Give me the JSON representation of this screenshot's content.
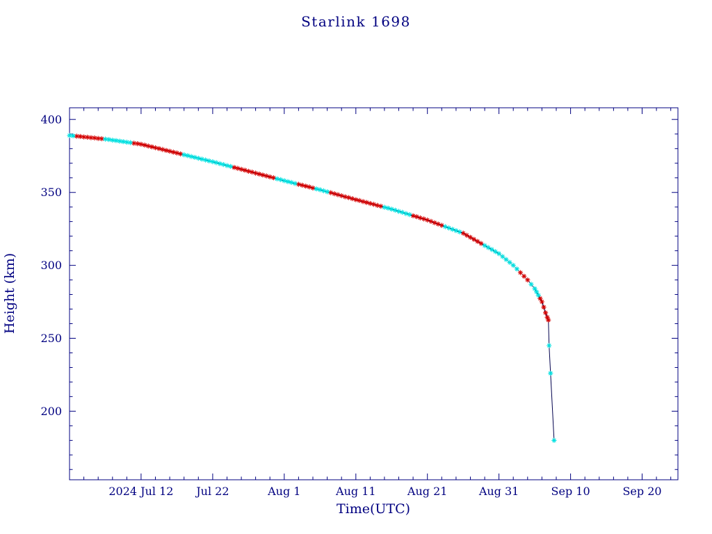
{
  "page": {
    "background": "#ffffff"
  },
  "chart_data": {
    "type": "line",
    "title": "Starlink 1698",
    "xlabel": "Time(UTC)",
    "ylabel": "Height (km)",
    "x_unit": "days since 2024-07-01 00:00 UTC",
    "y_unit": "km",
    "xlim": [
      1,
      86
    ],
    "ylim": [
      153,
      408
    ],
    "grid": false,
    "legend": "none",
    "marker": "asterisk",
    "x_minor_step": 2,
    "y_minor_step": 10,
    "x_ticks": [
      {
        "pos": 11,
        "label": "2024 Jul 12"
      },
      {
        "pos": 21,
        "label": "Jul 22"
      },
      {
        "pos": 31,
        "label": "Aug 1"
      },
      {
        "pos": 41,
        "label": "Aug 11"
      },
      {
        "pos": 51,
        "label": "Aug 21"
      },
      {
        "pos": 61,
        "label": "Aug 31"
      },
      {
        "pos": 71,
        "label": "Sep 10"
      },
      {
        "pos": 81,
        "label": "Sep 20"
      }
    ],
    "y_ticks": [
      {
        "pos": 200,
        "label": "200"
      },
      {
        "pos": 250,
        "label": "250"
      },
      {
        "pos": 300,
        "label": "300"
      },
      {
        "pos": 350,
        "label": "350"
      },
      {
        "pos": 400,
        "label": "400"
      }
    ],
    "colors": {
      "axis": "#000080",
      "text": "#000080",
      "line": "#00004d",
      "marker_red": "#d40000",
      "marker_cyan": "#00e0e0"
    },
    "point_format": [
      "day",
      "height_km",
      "marker_color r=red c=cyan"
    ],
    "points": [
      [
        1,
        389,
        "c"
      ],
      [
        1.5,
        388.8,
        "c"
      ],
      [
        2,
        388.5,
        "r"
      ],
      [
        2.5,
        388.3,
        "r"
      ],
      [
        3,
        388,
        "r"
      ],
      [
        3.5,
        387.8,
        "r"
      ],
      [
        4,
        387.5,
        "r"
      ],
      [
        4.5,
        387.3,
        "r"
      ],
      [
        5,
        387,
        "r"
      ],
      [
        5.5,
        386.8,
        "r"
      ],
      [
        6,
        386.5,
        "c"
      ],
      [
        6.5,
        386.2,
        "c"
      ],
      [
        7,
        385.8,
        "c"
      ],
      [
        7.5,
        385.5,
        "c"
      ],
      [
        8,
        385.1,
        "c"
      ],
      [
        8.5,
        384.8,
        "c"
      ],
      [
        9,
        384.4,
        "c"
      ],
      [
        9.5,
        384.1,
        "c"
      ],
      [
        10,
        383.7,
        "r"
      ],
      [
        10.5,
        383.4,
        "r"
      ],
      [
        11,
        383,
        "r"
      ],
      [
        11.5,
        382.4,
        "r"
      ],
      [
        12,
        381.8,
        "r"
      ],
      [
        12.5,
        381.2,
        "r"
      ],
      [
        13,
        380.6,
        "r"
      ],
      [
        13.5,
        380,
        "r"
      ],
      [
        14,
        379.4,
        "r"
      ],
      [
        14.5,
        378.8,
        "r"
      ],
      [
        15,
        378.2,
        "r"
      ],
      [
        15.5,
        377.6,
        "r"
      ],
      [
        16,
        377,
        "r"
      ],
      [
        16.5,
        376.4,
        "r"
      ],
      [
        17,
        375.8,
        "c"
      ],
      [
        17.5,
        375.2,
        "c"
      ],
      [
        18,
        374.6,
        "c"
      ],
      [
        18.5,
        374,
        "c"
      ],
      [
        19,
        373.4,
        "c"
      ],
      [
        19.5,
        372.8,
        "c"
      ],
      [
        20,
        372.2,
        "c"
      ],
      [
        20.5,
        371.6,
        "c"
      ],
      [
        21,
        371,
        "c"
      ],
      [
        21.5,
        370.4,
        "c"
      ],
      [
        22,
        369.7,
        "c"
      ],
      [
        22.5,
        369.1,
        "c"
      ],
      [
        23,
        368.4,
        "c"
      ],
      [
        23.5,
        367.8,
        "c"
      ],
      [
        24,
        367.1,
        "r"
      ],
      [
        24.5,
        366.5,
        "r"
      ],
      [
        25,
        365.8,
        "r"
      ],
      [
        25.5,
        365.2,
        "r"
      ],
      [
        26,
        364.5,
        "r"
      ],
      [
        26.5,
        363.9,
        "r"
      ],
      [
        27,
        363.2,
        "r"
      ],
      [
        27.5,
        362.6,
        "r"
      ],
      [
        28,
        361.9,
        "r"
      ],
      [
        28.5,
        361.3,
        "r"
      ],
      [
        29,
        360.6,
        "r"
      ],
      [
        29.5,
        360,
        "r"
      ],
      [
        30,
        359.3,
        "c"
      ],
      [
        30.5,
        358.7,
        "c"
      ],
      [
        31,
        358,
        "c"
      ],
      [
        31.5,
        357.4,
        "c"
      ],
      [
        32,
        356.8,
        "c"
      ],
      [
        32.5,
        356.1,
        "c"
      ],
      [
        33,
        355.5,
        "r"
      ],
      [
        33.5,
        354.9,
        "r"
      ],
      [
        34,
        354.3,
        "r"
      ],
      [
        34.5,
        353.7,
        "r"
      ],
      [
        35,
        353,
        "r"
      ],
      [
        35.5,
        352.4,
        "c"
      ],
      [
        36,
        351.8,
        "c"
      ],
      [
        36.5,
        351.1,
        "c"
      ],
      [
        37,
        350.4,
        "c"
      ],
      [
        37.5,
        349.8,
        "r"
      ],
      [
        38,
        349.1,
        "r"
      ],
      [
        38.5,
        348.4,
        "r"
      ],
      [
        39,
        347.7,
        "r"
      ],
      [
        39.5,
        347,
        "r"
      ],
      [
        40,
        346.4,
        "r"
      ],
      [
        40.5,
        345.7,
        "r"
      ],
      [
        41,
        345,
        "r"
      ],
      [
        41.5,
        344.4,
        "r"
      ],
      [
        42,
        343.7,
        "r"
      ],
      [
        42.5,
        343.1,
        "r"
      ],
      [
        43,
        342.4,
        "r"
      ],
      [
        43.5,
        341.8,
        "r"
      ],
      [
        44,
        341.1,
        "r"
      ],
      [
        44.5,
        340.5,
        "r"
      ],
      [
        45,
        339.8,
        "c"
      ],
      [
        45.5,
        339.2,
        "c"
      ],
      [
        46,
        338.5,
        "c"
      ],
      [
        46.5,
        337.8,
        "c"
      ],
      [
        47,
        337,
        "c"
      ],
      [
        47.5,
        336.3,
        "c"
      ],
      [
        48,
        335.5,
        "c"
      ],
      [
        48.5,
        334.8,
        "c"
      ],
      [
        49,
        334,
        "r"
      ],
      [
        49.5,
        333.3,
        "r"
      ],
      [
        50,
        332.5,
        "r"
      ],
      [
        50.5,
        331.8,
        "r"
      ],
      [
        51,
        331,
        "r"
      ],
      [
        51.5,
        330.1,
        "r"
      ],
      [
        52,
        329.2,
        "r"
      ],
      [
        52.5,
        328.3,
        "r"
      ],
      [
        53,
        327.4,
        "r"
      ],
      [
        53.5,
        326.5,
        "c"
      ],
      [
        54,
        325.6,
        "c"
      ],
      [
        54.5,
        324.7,
        "c"
      ],
      [
        55,
        323.8,
        "c"
      ],
      [
        55.5,
        322.9,
        "c"
      ],
      [
        56,
        322,
        "r"
      ],
      [
        56.5,
        320.6,
        "r"
      ],
      [
        57,
        319.2,
        "r"
      ],
      [
        57.5,
        317.8,
        "r"
      ],
      [
        58,
        316.4,
        "r"
      ],
      [
        58.5,
        315,
        "r"
      ],
      [
        59,
        313.6,
        "c"
      ],
      [
        59.5,
        312.2,
        "c"
      ],
      [
        60,
        310.8,
        "c"
      ],
      [
        60.5,
        309.4,
        "c"
      ],
      [
        61,
        308,
        "c"
      ],
      [
        61.5,
        306,
        "c"
      ],
      [
        62,
        304,
        "c"
      ],
      [
        62.5,
        302,
        "c"
      ],
      [
        63,
        300,
        "c"
      ],
      [
        63.5,
        297.5,
        "c"
      ],
      [
        64,
        295,
        "r"
      ],
      [
        64.5,
        292.5,
        "r"
      ],
      [
        65,
        290,
        "r"
      ],
      [
        65.5,
        287,
        "c"
      ],
      [
        66,
        284,
        "c"
      ],
      [
        66.25,
        281.8,
        "c"
      ],
      [
        66.5,
        279.5,
        "c"
      ],
      [
        66.75,
        277.3,
        "r"
      ],
      [
        67,
        275,
        "r"
      ],
      [
        67.25,
        271.3,
        "r"
      ],
      [
        67.5,
        267.5,
        "r"
      ],
      [
        67.75,
        264.4,
        "r"
      ],
      [
        67.9,
        262.5,
        "r"
      ],
      [
        68,
        245,
        "c"
      ],
      [
        68.2,
        226,
        "c"
      ],
      [
        68.7,
        180,
        "c"
      ]
    ]
  }
}
